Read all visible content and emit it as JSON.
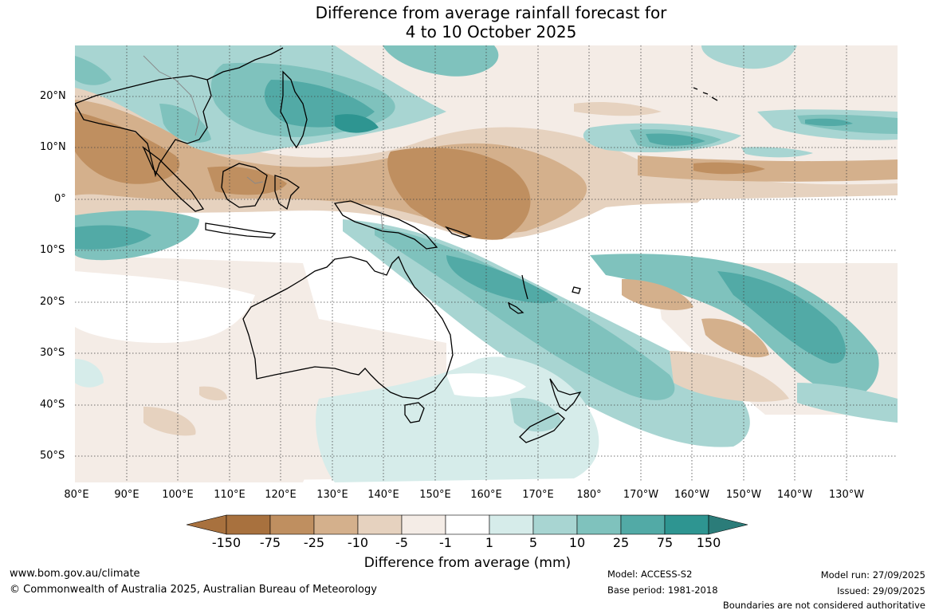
{
  "title": {
    "line1": "Difference from average rainfall forecast for",
    "line2": "4 to 10 October 2025"
  },
  "map": {
    "lat_labels": [
      "20°N",
      "10°N",
      "0°",
      "10°S",
      "20°S",
      "30°S",
      "40°S",
      "50°S"
    ],
    "lon_labels": [
      "80°E",
      "90°E",
      "100°E",
      "110°E",
      "120°E",
      "130°E",
      "140°E",
      "150°E",
      "160°E",
      "170°E",
      "180°",
      "170°W",
      "160°W",
      "150°W",
      "140°W",
      "130°W"
    ],
    "region": "Australia and Western Pacific"
  },
  "colorbar": {
    "title": "Difference from average (mm)",
    "labels": [
      "-150",
      "-75",
      "-25",
      "-10",
      "-5",
      "-1",
      "1",
      "5",
      "10",
      "25",
      "75",
      "150"
    ],
    "colors": [
      "#a8713e",
      "#bf8f60",
      "#d4b08c",
      "#e6d2bf",
      "#f4ece6",
      "#ffffff",
      "#d6ecea",
      "#a8d5d2",
      "#7fc2bd",
      "#52aaa6",
      "#2e9591",
      "#2b7c79",
      "#257067"
    ]
  },
  "footer": {
    "website": "www.bom.gov.au/climate",
    "copyright": "© Commonwealth of Australia 2025, Australian Bureau of Meteorology",
    "model": "Model: ACCESS-S2",
    "base_period": "Base period: 1981-2018",
    "model_run": "Model run: 27/09/2025",
    "issued": "Issued: 29/09/2025",
    "disclaimer": "Boundaries are not considered authoritative"
  }
}
